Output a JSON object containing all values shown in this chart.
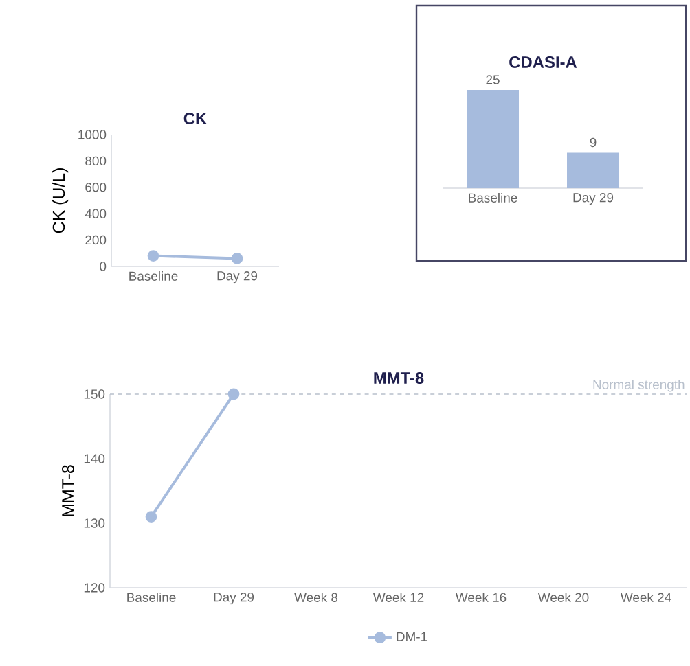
{
  "chart_data": [
    {
      "type": "line",
      "title": "CK",
      "ylabel": "CK (U/L)",
      "categories": [
        "Baseline",
        "Day 29"
      ],
      "series": [
        {
          "color": "#a6bbdd",
          "values": [
            80,
            60
          ]
        }
      ],
      "ylim": [
        0,
        1000
      ],
      "yticks": [
        0,
        200,
        400,
        600,
        800,
        1000
      ],
      "marker": "circle"
    },
    {
      "type": "bar",
      "title": "CDASI-A",
      "categories": [
        "Baseline",
        "Day 29"
      ],
      "values": [
        25,
        9
      ],
      "color": "#a6bbdd",
      "data_labels": true
    },
    {
      "type": "line",
      "title": "MMT-8",
      "ylabel": "MMT-8",
      "categories": [
        "Baseline",
        "Day 29",
        "Week 8",
        "Week 12",
        "Week 16",
        "Week 20",
        "Week 24"
      ],
      "series": [
        {
          "name": "DM-1",
          "color": "#a6bbdd",
          "values": [
            131,
            150,
            null,
            null,
            null,
            null,
            null
          ]
        }
      ],
      "ylim": [
        120,
        150
      ],
      "yticks": [
        120,
        130,
        140,
        150
      ],
      "marker": "circle",
      "legend": "bottom",
      "ref_lines": [
        {
          "axis": "y",
          "value": 150,
          "label": "Normal strength",
          "color": "#b8c0cc",
          "line_style": "dashed"
        }
      ]
    }
  ]
}
